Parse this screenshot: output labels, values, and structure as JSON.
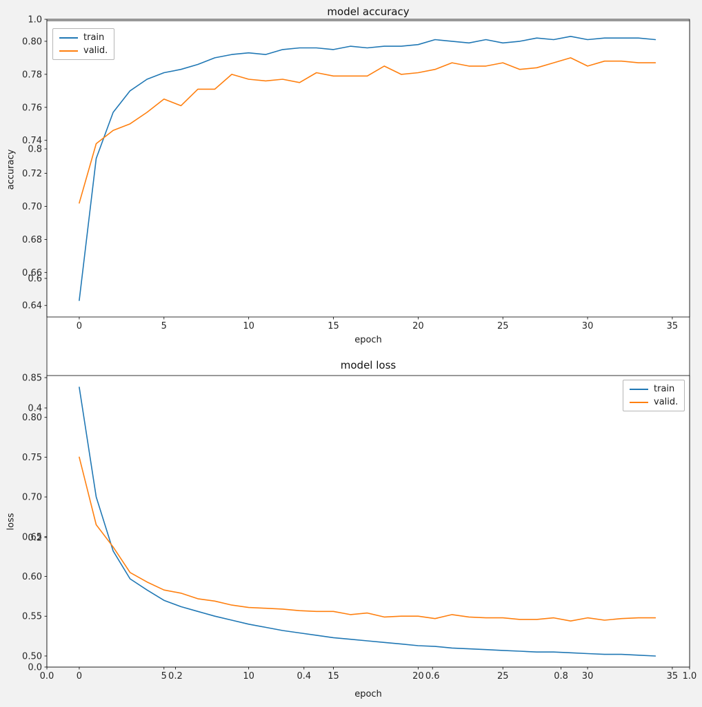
{
  "figure": {
    "background_axes": {
      "x_tick_labels": [
        "0.0",
        "0.2",
        "0.4",
        "0.6",
        "0.8",
        "1.0"
      ],
      "y_tick_labels": [
        "0.0",
        "0.2",
        "0.4",
        "0.6",
        "0.8",
        "1.0"
      ]
    }
  },
  "colors": {
    "train": "#1f77b4",
    "valid": "#ff7f0e",
    "axes_background": "#ffffff",
    "figure_background": "#f2f2f2"
  },
  "chart_data": [
    {
      "type": "line",
      "title": "model accuracy",
      "xlabel": "epoch",
      "ylabel": "accuracy",
      "grid": false,
      "legend_position": "top-left",
      "xlim": [
        -1.91,
        36.02
      ],
      "ylim": [
        0.633,
        0.8125
      ],
      "x_ticks": [
        0,
        5,
        10,
        15,
        20,
        25,
        30,
        35
      ],
      "x_tick_labels": [
        "0",
        "5",
        "10",
        "15",
        "20",
        "25",
        "30",
        "35"
      ],
      "y_ticks": [
        0.64,
        0.66,
        0.68,
        0.7,
        0.72,
        0.74,
        0.76,
        0.78,
        0.8
      ],
      "y_tick_labels": [
        "0.64",
        "0.66",
        "0.68",
        "0.70",
        "0.72",
        "0.74",
        "0.76",
        "0.78",
        "0.80"
      ],
      "x": [
        0,
        1,
        2,
        3,
        4,
        5,
        6,
        7,
        8,
        9,
        10,
        11,
        12,
        13,
        14,
        15,
        16,
        17,
        18,
        19,
        20,
        21,
        22,
        23,
        24,
        25,
        26,
        27,
        28,
        29,
        30,
        31,
        32,
        33,
        34
      ],
      "series": [
        {
          "name": "train",
          "color": "#1f77b4",
          "values": [
            0.643,
            0.729,
            0.757,
            0.77,
            0.777,
            0.781,
            0.783,
            0.786,
            0.79,
            0.792,
            0.793,
            0.792,
            0.795,
            0.796,
            0.796,
            0.795,
            0.797,
            0.796,
            0.797,
            0.797,
            0.798,
            0.801,
            0.8,
            0.799,
            0.801,
            0.799,
            0.8,
            0.802,
            0.801,
            0.803,
            0.801,
            0.802,
            0.802,
            0.802,
            0.801
          ]
        },
        {
          "name": "valid.",
          "color": "#ff7f0e",
          "values": [
            0.702,
            0.738,
            0.746,
            0.75,
            0.757,
            0.765,
            0.761,
            0.771,
            0.771,
            0.78,
            0.777,
            0.776,
            0.777,
            0.775,
            0.781,
            0.779,
            0.779,
            0.779,
            0.785,
            0.78,
            0.781,
            0.783,
            0.787,
            0.785,
            0.785,
            0.787,
            0.783,
            0.784,
            0.787,
            0.79,
            0.785,
            0.788,
            0.788,
            0.787,
            0.787
          ]
        }
      ]
    },
    {
      "type": "line",
      "title": "model loss",
      "xlabel": "epoch",
      "ylabel": "loss",
      "grid": false,
      "legend_position": "top-right",
      "xlim": [
        -1.91,
        36.02
      ],
      "ylim": [
        0.4861,
        0.8526
      ],
      "x_ticks": [
        0,
        5,
        10,
        15,
        20,
        25,
        30,
        35
      ],
      "x_tick_labels": [
        "0",
        "5",
        "10",
        "15",
        "20",
        "25",
        "30",
        "35"
      ],
      "y_ticks": [
        0.5,
        0.55,
        0.6,
        0.65,
        0.7,
        0.75,
        0.8,
        0.85
      ],
      "y_tick_labels": [
        "0.50",
        "0.55",
        "0.60",
        "0.65",
        "0.70",
        "0.75",
        "0.80",
        "0.85"
      ],
      "x": [
        0,
        1,
        2,
        3,
        4,
        5,
        6,
        7,
        8,
        9,
        10,
        11,
        12,
        13,
        14,
        15,
        16,
        17,
        18,
        19,
        20,
        21,
        22,
        23,
        24,
        25,
        26,
        27,
        28,
        29,
        30,
        31,
        32,
        33,
        34
      ],
      "series": [
        {
          "name": "train",
          "color": "#1f77b4",
          "values": [
            0.838,
            0.7,
            0.632,
            0.597,
            0.583,
            0.57,
            0.562,
            0.556,
            0.55,
            0.545,
            0.54,
            0.536,
            0.532,
            0.529,
            0.526,
            0.523,
            0.521,
            0.519,
            0.517,
            0.515,
            0.513,
            0.512,
            0.51,
            0.509,
            0.508,
            0.507,
            0.506,
            0.505,
            0.505,
            0.504,
            0.503,
            0.502,
            0.502,
            0.501,
            0.5
          ]
        },
        {
          "name": "valid.",
          "color": "#ff7f0e",
          "values": [
            0.75,
            0.665,
            0.637,
            0.605,
            0.593,
            0.583,
            0.579,
            0.572,
            0.569,
            0.564,
            0.561,
            0.56,
            0.559,
            0.557,
            0.556,
            0.556,
            0.552,
            0.554,
            0.549,
            0.55,
            0.55,
            0.547,
            0.552,
            0.549,
            0.548,
            0.548,
            0.546,
            0.546,
            0.548,
            0.544,
            0.548,
            0.545,
            0.547,
            0.548,
            0.548
          ]
        }
      ]
    }
  ]
}
